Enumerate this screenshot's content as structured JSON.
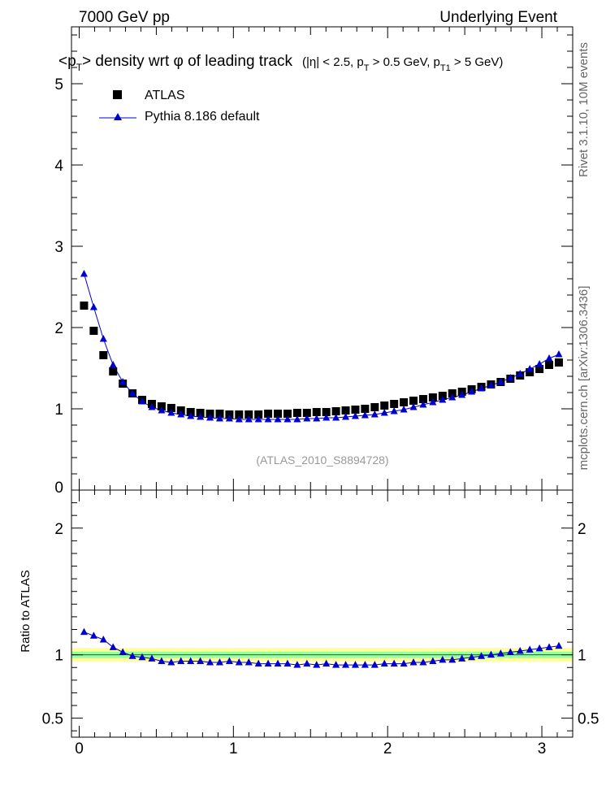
{
  "header": {
    "left": "7000 GeV pp",
    "right": "Underlying Event"
  },
  "side_labels": {
    "rivet": "Rivet 3.1.10, 10M events",
    "mcplots": "mcplots.cern.ch [arXiv:1306.3436]"
  },
  "watermark": "(ATLAS_2010_S8894728)",
  "chart_data": [
    {
      "type": "scatter",
      "title": "<pT> density wrt φ of leading track",
      "subtitle": "(|η| < 2.5, pT > 0.5 GeV, pT1 > 5 GeV)",
      "title_parts": {
        "lt": "<",
        "p": "p",
        "t_sub": "T",
        "gt": ">",
        "main": " density wrt  φ of leading track",
        "cut_open": "(|η| < 2.5, p",
        "cut_mid": " > 0.5 GeV, p",
        "cut_t1": "T1",
        "cut_close": " > 5 GeV)"
      },
      "xlim": [
        -0.05,
        3.2
      ],
      "ylim": [
        0,
        5.7
      ],
      "yticks": [
        1,
        2,
        3,
        4,
        5
      ],
      "ytick_labels": [
        "1",
        "2",
        "3",
        "4",
        "5"
      ],
      "ybottom_label": "0",
      "legend": {
        "position": "top-left",
        "entries": [
          {
            "name": "ATLAS",
            "marker": "square",
            "color": "#000000"
          },
          {
            "name": "Pythia 8.186 default",
            "marker": "triangle",
            "color": "#0000cc"
          }
        ]
      },
      "x": [
        0.0314,
        0.0942,
        0.157,
        0.2199,
        0.2827,
        0.3456,
        0.4084,
        0.4712,
        0.5341,
        0.5969,
        0.6597,
        0.7226,
        0.7854,
        0.8482,
        0.9111,
        0.9739,
        1.0367,
        1.0996,
        1.1624,
        1.2252,
        1.2881,
        1.3509,
        1.4137,
        1.4766,
        1.5394,
        1.6022,
        1.6651,
        1.7279,
        1.7907,
        1.8536,
        1.9164,
        1.9792,
        2.0421,
        2.1049,
        2.1677,
        2.2306,
        2.2934,
        2.3562,
        2.4191,
        2.4819,
        2.5447,
        2.6076,
        2.6704,
        2.7332,
        2.7961,
        2.8589,
        2.9217,
        2.9846,
        3.0474,
        3.1102
      ],
      "series": [
        {
          "name": "ATLAS",
          "values": [
            2.27,
            1.96,
            1.66,
            1.46,
            1.31,
            1.19,
            1.11,
            1.06,
            1.03,
            1.01,
            0.98,
            0.96,
            0.95,
            0.94,
            0.94,
            0.93,
            0.93,
            0.93,
            0.93,
            0.94,
            0.94,
            0.94,
            0.95,
            0.95,
            0.96,
            0.96,
            0.97,
            0.98,
            0.99,
            1.0,
            1.02,
            1.04,
            1.06,
            1.08,
            1.1,
            1.12,
            1.14,
            1.16,
            1.19,
            1.21,
            1.24,
            1.27,
            1.3,
            1.33,
            1.37,
            1.41,
            1.45,
            1.49,
            1.54,
            1.57
          ]
        },
        {
          "name": "Pythia 8.186 default",
          "values": [
            2.66,
            2.25,
            1.86,
            1.54,
            1.33,
            1.19,
            1.09,
            1.02,
            0.98,
            0.95,
            0.93,
            0.91,
            0.9,
            0.89,
            0.88,
            0.88,
            0.87,
            0.87,
            0.87,
            0.87,
            0.87,
            0.87,
            0.87,
            0.88,
            0.88,
            0.89,
            0.89,
            0.9,
            0.91,
            0.92,
            0.93,
            0.95,
            0.97,
            0.99,
            1.02,
            1.05,
            1.08,
            1.11,
            1.14,
            1.17,
            1.21,
            1.25,
            1.29,
            1.33,
            1.38,
            1.43,
            1.49,
            1.55,
            1.62,
            1.67
          ]
        }
      ]
    },
    {
      "type": "scatter",
      "ylabel": "Ratio to ATLAS",
      "xlim": [
        -0.05,
        3.2
      ],
      "ylim": [
        0.35,
        2.3
      ],
      "yticks": [
        0.5,
        1,
        2
      ],
      "ytick_labels": [
        "0.5",
        "1",
        "2"
      ],
      "xticks": [
        0,
        1,
        2,
        3
      ],
      "xtick_labels": [
        "0",
        "1",
        "2",
        "3"
      ],
      "band_colors": {
        "inner": "#99ff99",
        "outer": "#ffff99",
        "line": "#3333ff"
      },
      "band_inner": [
        0.975,
        1.025
      ],
      "band_outer": [
        0.945,
        1.055
      ],
      "ratio": [
        1.18,
        1.15,
        1.12,
        1.06,
        1.02,
        0.99,
        0.98,
        0.97,
        0.95,
        0.94,
        0.95,
        0.95,
        0.95,
        0.94,
        0.94,
        0.95,
        0.94,
        0.94,
        0.93,
        0.93,
        0.93,
        0.93,
        0.92,
        0.93,
        0.92,
        0.93,
        0.92,
        0.92,
        0.92,
        0.92,
        0.92,
        0.93,
        0.93,
        0.93,
        0.94,
        0.94,
        0.95,
        0.96,
        0.96,
        0.97,
        0.98,
        0.99,
        1.0,
        1.01,
        1.02,
        1.03,
        1.04,
        1.05,
        1.06,
        1.07
      ]
    }
  ]
}
